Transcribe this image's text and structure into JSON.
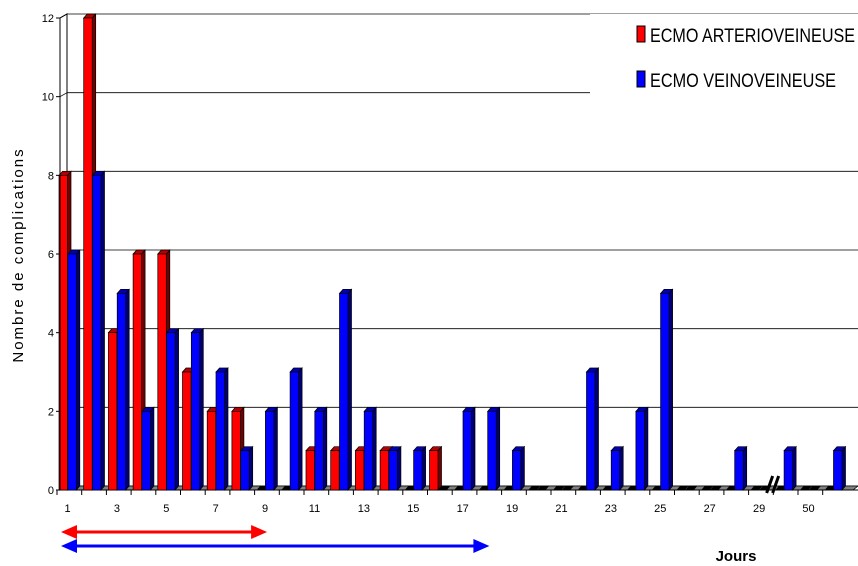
{
  "chart_data": {
    "type": "bar",
    "ylabel": "Nombre de complications",
    "xlabel": "Jours",
    "ylim": [
      0,
      12
    ],
    "y_ticks": [
      "0",
      "2",
      "4",
      "6",
      "8",
      "10",
      "12"
    ],
    "grid": true,
    "legend_position": "top-right",
    "categories": [
      "1",
      "2",
      "3",
      "4",
      "5",
      "6",
      "7",
      "8",
      "9",
      "10",
      "11",
      "12",
      "13",
      "14",
      "15",
      "16",
      "17",
      "18",
      "19",
      "20",
      "21",
      "22",
      "23",
      "24",
      "25",
      "26",
      "27",
      "28",
      "29",
      "30",
      "50",
      "51"
    ],
    "x_tick_labels": [
      "1",
      "3",
      "5",
      "7",
      "9",
      "11",
      "13",
      "15",
      "17",
      "19",
      "21",
      "23",
      "25",
      "27",
      "29",
      "50"
    ],
    "axis_break_after": "29",
    "series": [
      {
        "name": "ECMO ARTERIOVEINEUSE",
        "color": "#ff0000",
        "values": [
          8,
          12,
          4,
          6,
          6,
          3,
          2,
          2,
          0,
          0,
          1,
          1,
          1,
          1,
          0,
          1,
          0,
          0,
          0,
          0,
          0,
          0,
          0,
          0,
          0,
          0,
          0,
          0,
          0,
          0,
          0,
          0
        ]
      },
      {
        "name": "ECMO VEINOVEINEUSE",
        "color": "#0000ff",
        "values": [
          6,
          8,
          5,
          2,
          4,
          4,
          3,
          1,
          2,
          3,
          2,
          5,
          2,
          1,
          1,
          0,
          2,
          2,
          1,
          0,
          0,
          3,
          1,
          2,
          5,
          0,
          0,
          1,
          0,
          1,
          0,
          1
        ]
      }
    ],
    "duration_arrows": [
      {
        "series": "ECMO ARTERIOVEINEUSE",
        "color": "#ff0000",
        "from": "1",
        "to": "9"
      },
      {
        "series": "ECMO VEINOVEINEUSE",
        "color": "#0000ff",
        "from": "1",
        "to": "18"
      }
    ]
  }
}
